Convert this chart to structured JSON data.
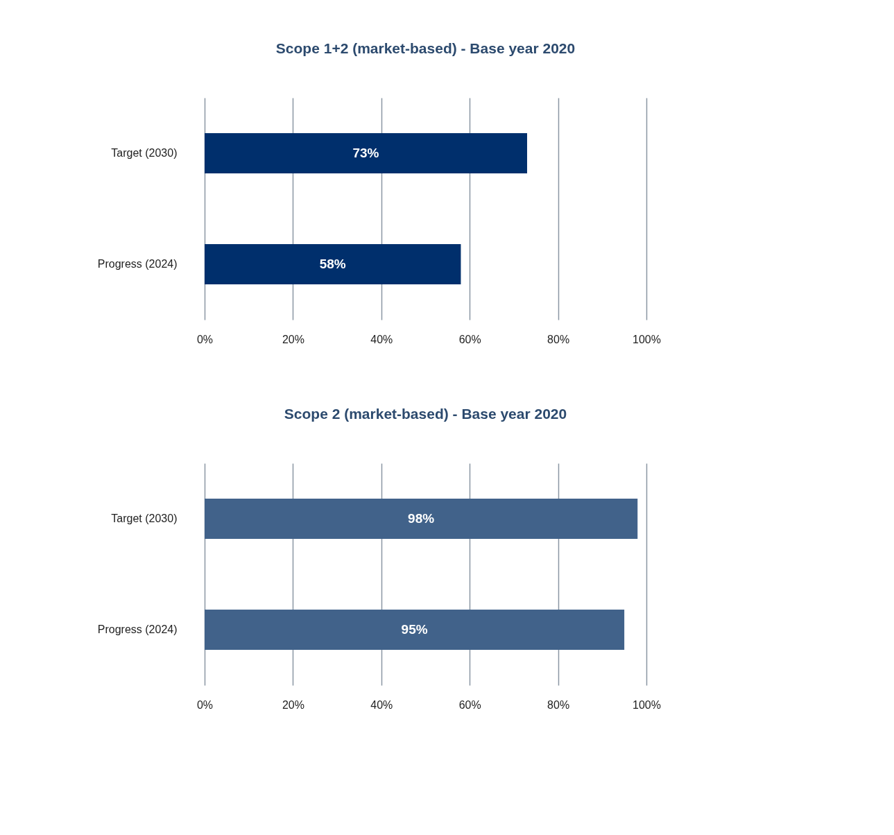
{
  "chart_data": [
    {
      "type": "bar",
      "orientation": "horizontal",
      "title": "Scope 1+2 (market-based) - Base year 2020",
      "categories": [
        "Target (2030)",
        "Progress (2024)"
      ],
      "series": [
        {
          "color": "#002f6c",
          "values": [
            73,
            58
          ],
          "value_labels": [
            "73%",
            "58%"
          ]
        }
      ],
      "xlim": [
        0,
        100
      ],
      "xticks": [
        {
          "value": 0,
          "label": "0%"
        },
        {
          "value": 20,
          "label": "20%"
        },
        {
          "value": 40,
          "label": "40%"
        },
        {
          "value": 60,
          "label": "60%"
        },
        {
          "value": 80,
          "label": "80%"
        },
        {
          "value": 100,
          "label": "100%"
        }
      ],
      "grid": "x"
    },
    {
      "type": "bar",
      "orientation": "horizontal",
      "title": "Scope 2 (market-based) - Base year 2020",
      "categories": [
        "Target (2030)",
        "Progress (2024)"
      ],
      "series": [
        {
          "color": "#41628a",
          "values": [
            98,
            95
          ],
          "value_labels": [
            "98%",
            "95%"
          ]
        }
      ],
      "xlim": [
        0,
        100
      ],
      "xticks": [
        {
          "value": 0,
          "label": "0%"
        },
        {
          "value": 20,
          "label": "20%"
        },
        {
          "value": 40,
          "label": "40%"
        },
        {
          "value": 60,
          "label": "60%"
        },
        {
          "value": 80,
          "label": "80%"
        },
        {
          "value": 100,
          "label": "100%"
        }
      ],
      "grid": "x"
    }
  ]
}
